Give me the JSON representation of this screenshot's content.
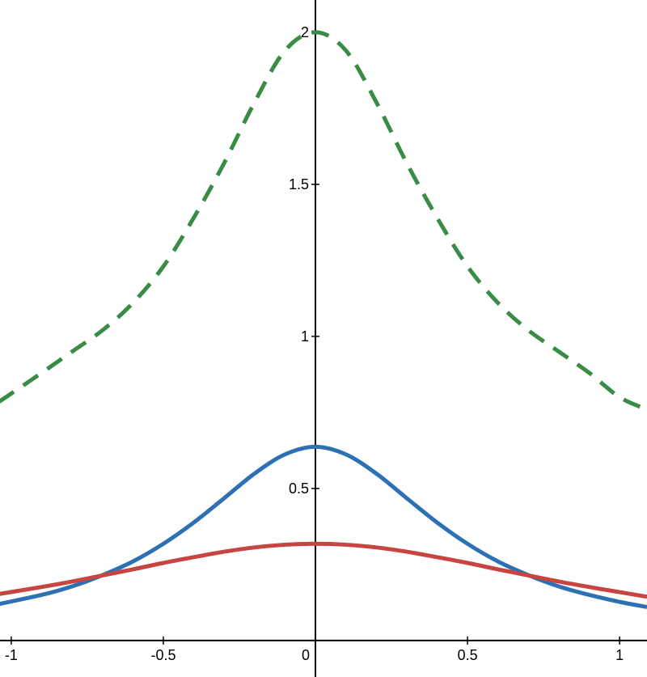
{
  "chart_data": {
    "type": "line",
    "x": [
      -1.04,
      -0.9,
      -0.8,
      -0.7,
      -0.6,
      -0.5,
      -0.4,
      -0.3,
      -0.2,
      -0.1,
      0,
      0.1,
      0.2,
      0.3,
      0.4,
      0.5,
      0.6,
      0.7,
      0.8,
      0.9,
      1.0,
      1.09
    ],
    "series": [
      {
        "color": "#388c46",
        "dashed": true,
        "values": [
          0.785,
          0.88,
          0.95,
          1.02,
          1.11,
          1.23,
          1.39,
          1.57,
          1.77,
          1.94,
          2,
          1.94,
          1.77,
          1.57,
          1.39,
          1.23,
          1.11,
          1.02,
          0.95,
          0.88,
          0.8,
          0.76
        ]
      },
      {
        "color": "#2d70b3",
        "dashed": false,
        "values": [
          0.12,
          0.15,
          0.178,
          0.215,
          0.26,
          0.318,
          0.388,
          0.468,
          0.549,
          0.612,
          0.637,
          0.612,
          0.549,
          0.468,
          0.388,
          0.318,
          0.26,
          0.215,
          0.178,
          0.15,
          0.127,
          0.11
        ]
      },
      {
        "color": "#c74440",
        "dashed": false,
        "values": [
          0.153,
          0.176,
          0.194,
          0.214,
          0.234,
          0.255,
          0.274,
          0.292,
          0.306,
          0.315,
          0.318,
          0.315,
          0.306,
          0.292,
          0.274,
          0.255,
          0.234,
          0.214,
          0.194,
          0.176,
          0.159,
          0.144
        ]
      }
    ],
    "xlim": [
      -1.037,
      1.09
    ],
    "ylim": [
      -0.12,
      2.106
    ],
    "xticks": [
      -1,
      -0.5,
      0,
      0.5,
      1
    ],
    "yticks": [
      0.5,
      1,
      1.5,
      2
    ]
  }
}
